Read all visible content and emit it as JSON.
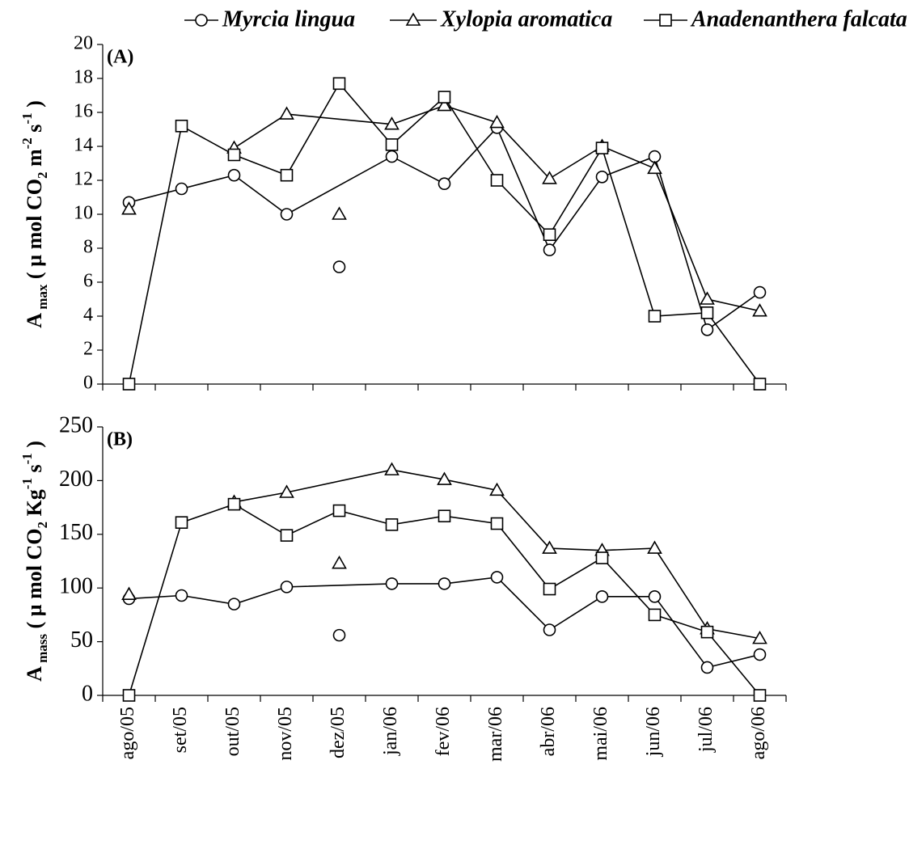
{
  "chart_data": [
    {
      "type": "line",
      "panel_label": "(A)",
      "ylabel": [
        {
          "text": "A"
        },
        {
          "text": " max",
          "shift": "sub"
        },
        {
          "text": " ( µ mol CO"
        },
        {
          "text": "2",
          "shift": "sub"
        },
        {
          "text": " m"
        },
        {
          "text": "-2",
          "shift": "super"
        },
        {
          "text": " s"
        },
        {
          "text": "-1",
          "shift": "super"
        },
        {
          "text": " )"
        }
      ],
      "ylim": [
        0,
        20
      ],
      "yticks": [
        0,
        2,
        4,
        6,
        8,
        10,
        12,
        14,
        16,
        18,
        20
      ],
      "series": [
        {
          "name": "Myrcia lingua",
          "color": "#000000",
          "marker": "circle",
          "unjoined": [
            4
          ],
          "values": [
            10.7,
            11.5,
            12.3,
            10.0,
            6.9,
            13.4,
            11.8,
            15.1,
            7.9,
            12.2,
            13.4,
            3.2,
            5.4
          ]
        },
        {
          "name": "Xylopia aromatica",
          "color": "#000000",
          "marker": "triangle",
          "unjoined": [
            4
          ],
          "values": [
            10.3,
            null,
            13.9,
            15.9,
            10.0,
            15.3,
            16.4,
            15.4,
            12.1,
            14.0,
            12.7,
            5.0,
            4.3
          ]
        },
        {
          "name": "Anadenanthera falcata",
          "color": "#000000",
          "marker": "square",
          "unjoined": [],
          "values": [
            0,
            15.2,
            13.5,
            12.3,
            17.7,
            14.1,
            16.9,
            12.0,
            8.8,
            13.9,
            4.0,
            4.2,
            0
          ]
        }
      ]
    },
    {
      "type": "line",
      "panel_label": "(B)",
      "ylabel": [
        {
          "text": "A"
        },
        {
          "text": " mass",
          "shift": "sub"
        },
        {
          "text": " ( µ mol CO"
        },
        {
          "text": "2",
          "shift": "sub"
        },
        {
          "text": " Kg"
        },
        {
          "text": "-1",
          "shift": "super"
        },
        {
          "text": " s"
        },
        {
          "text": "-1",
          "shift": "super"
        },
        {
          "text": " )"
        }
      ],
      "categories": [
        "ago/05",
        "set/05",
        "out/05",
        "nov/05",
        "dez/05",
        "jan/06",
        "fev/06",
        "mar/06",
        "abr/06",
        "mai/06",
        "jun/06",
        "jul/06",
        "ago/06"
      ],
      "ylim": [
        0,
        250
      ],
      "yticks": [
        0,
        50,
        100,
        150,
        200,
        250
      ],
      "series": [
        {
          "name": "Myrcia lingua",
          "color": "#000000",
          "marker": "circle",
          "unjoined": [
            4
          ],
          "values": [
            90,
            93,
            85,
            101,
            56,
            104,
            104,
            110,
            61,
            92,
            92,
            26,
            38
          ]
        },
        {
          "name": "Xylopia aromatica",
          "color": "#000000",
          "marker": "triangle",
          "unjoined": [
            4
          ],
          "values": [
            94,
            null,
            180,
            189,
            123,
            210,
            201,
            191,
            137,
            135,
            137,
            62,
            53
          ]
        },
        {
          "name": "Anadenanthera falcata",
          "color": "#000000",
          "marker": "square",
          "unjoined": [],
          "values": [
            0,
            161,
            178,
            149,
            172,
            159,
            167,
            160,
            99,
            128,
            75,
            59,
            0
          ]
        }
      ]
    }
  ]
}
